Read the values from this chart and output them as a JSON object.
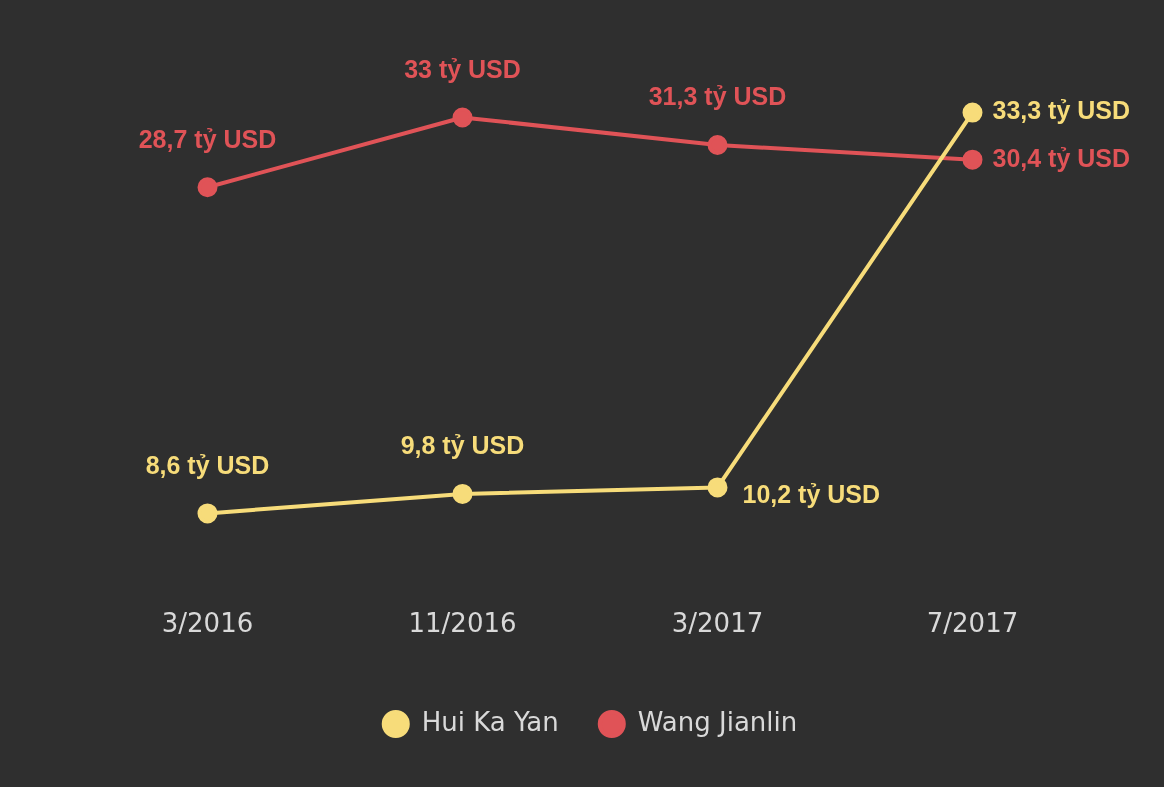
{
  "chart_data": {
    "type": "line",
    "categories": [
      "3/2016",
      "11/2016",
      "3/2017",
      "7/2017"
    ],
    "series": [
      {
        "name": "Hui Ka Yan",
        "color": "#f7dc7a",
        "values": [
          8.6,
          9.8,
          10.2,
          33.3
        ],
        "value_labels": [
          "8,6 tỷ USD",
          "9,8 tỷ USD",
          "10,2 tỷ USD",
          "33,3 tỷ USD"
        ]
      },
      {
        "name": "Wang Jianlin",
        "color": "#e05357",
        "values": [
          28.7,
          33,
          31.3,
          30.4
        ],
        "value_labels": [
          "28,7 tỷ USD",
          "33 tỷ USD",
          "31,3 tỷ USD",
          "30,4 tỷ USD"
        ]
      }
    ],
    "legend": "bottom",
    "marker": "circle",
    "grid": false
  }
}
